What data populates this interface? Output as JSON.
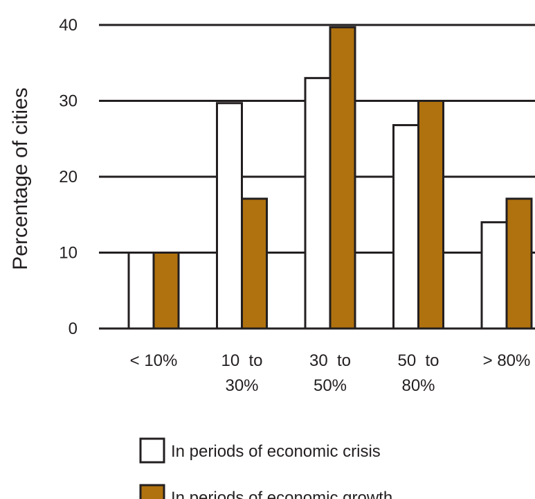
{
  "chart_data": {
    "type": "bar",
    "title": "",
    "xlabel": "",
    "ylabel": "Percentage of cities",
    "ylim": [
      0,
      40
    ],
    "yticks": [
      0,
      10,
      20,
      30,
      40
    ],
    "grid": true,
    "legend_position": "bottom",
    "categories": [
      {
        "lines": [
          "< 10%"
        ]
      },
      {
        "lines": [
          "10  to",
          "30%"
        ]
      },
      {
        "lines": [
          "30  to",
          "50%"
        ]
      },
      {
        "lines": [
          "50  to",
          "80%"
        ]
      },
      {
        "lines": [
          "> 80%"
        ]
      }
    ],
    "series": [
      {
        "name": "In periods of economic crisis",
        "color": "#ffffff",
        "values": [
          10,
          29.7,
          33,
          26.8,
          14
        ]
      },
      {
        "name": "In periods of economic growth",
        "color": "#b0720e",
        "values": [
          10,
          17.1,
          39.7,
          30,
          17.1
        ]
      }
    ],
    "stroke_color": "#231f20"
  }
}
